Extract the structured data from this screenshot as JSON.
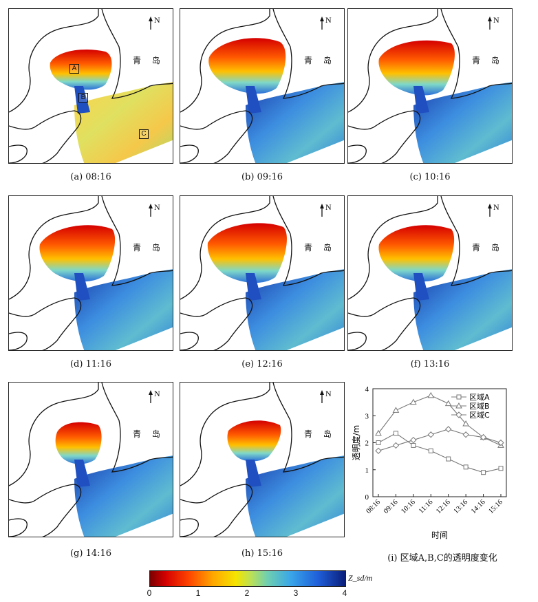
{
  "panels": [
    {
      "caption": "(a) 08:16",
      "north": "N",
      "city": "青 岛"
    },
    {
      "caption": "(b) 09:16",
      "north": "N",
      "city": "青 岛"
    },
    {
      "caption": "(c) 10:16",
      "north": "N",
      "city": "青 岛"
    },
    {
      "caption": "(d) 11:16",
      "north": "N",
      "city": "青 岛"
    },
    {
      "caption": "(e) 12:16",
      "north": "N",
      "city": "青 岛"
    },
    {
      "caption": "(f) 13:16",
      "north": "N",
      "city": "青 岛"
    },
    {
      "caption": "(g) 14:16",
      "north": "N",
      "city": "青 岛"
    },
    {
      "caption": "(h) 15:16",
      "north": "N",
      "city": "青 岛"
    }
  ],
  "region_markers": [
    "A",
    "B",
    "C"
  ],
  "colorbar": {
    "label": "Z_sd/m",
    "ticks": [
      "0",
      "1",
      "2",
      "3",
      "4"
    ],
    "colors": [
      "#7a0000",
      "#d40000",
      "#ff4500",
      "#ffa500",
      "#f5e400",
      "#b9e05a",
      "#6fd0b0",
      "#3aa6e8",
      "#1f5fd9",
      "#0a1e7a"
    ]
  },
  "line_chart": {
    "caption": "(i) 区域A,B,C的透明度变化",
    "ylabel": "透明度/m",
    "xlabel": "时间",
    "chart_data": {
      "type": "line",
      "x": [
        "08:16",
        "09:16",
        "10:16",
        "11:16",
        "12:16",
        "13:16",
        "14:16",
        "15:16"
      ],
      "ylim": [
        0,
        4
      ],
      "yticks": [
        "0",
        "1",
        "2",
        "3",
        "4"
      ],
      "series": [
        {
          "name": "区域A",
          "marker": "square",
          "values": [
            2.0,
            2.35,
            1.9,
            1.7,
            1.4,
            1.1,
            0.9,
            1.05
          ]
        },
        {
          "name": "区域B",
          "marker": "triangle",
          "values": [
            2.35,
            3.2,
            3.5,
            3.75,
            3.45,
            2.7,
            2.2,
            1.9
          ]
        },
        {
          "name": "区域C",
          "marker": "diamond",
          "values": [
            1.7,
            1.9,
            2.1,
            2.3,
            2.5,
            2.3,
            2.2,
            2.0
          ]
        }
      ],
      "legend": "top-right"
    }
  }
}
